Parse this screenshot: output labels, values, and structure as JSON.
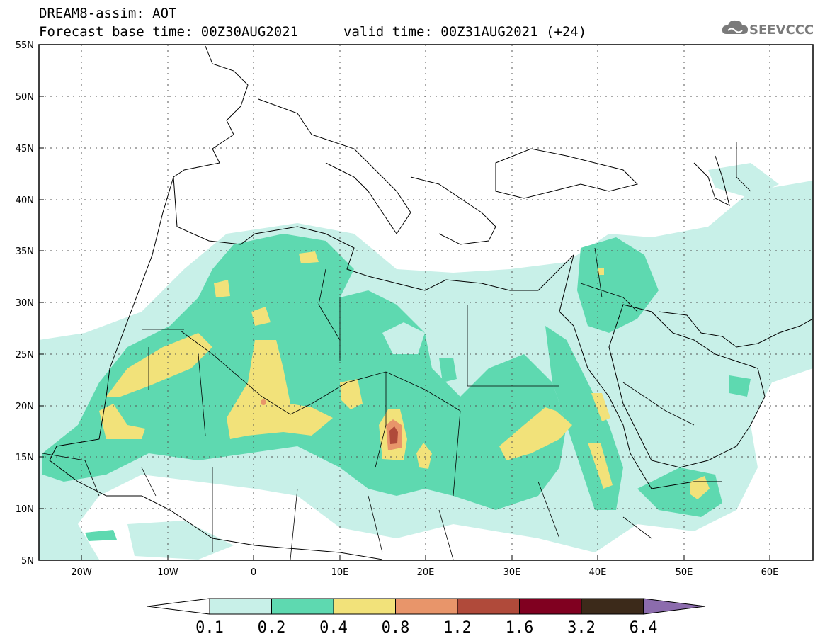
{
  "header": {
    "title": "DREAM8-assim: AOT",
    "base_time": "Forecast base time: 00Z30AUG2021",
    "valid_time": "valid time: 00Z31AUG2021 (+24)"
  },
  "logo": {
    "text": "SEEVCCC",
    "icon": "cloud-icon"
  },
  "map": {
    "lon_range": [
      -25,
      65
    ],
    "lat_range": [
      5,
      55
    ],
    "lat_ticks": [
      "55N",
      "50N",
      "45N",
      "40N",
      "35N",
      "30N",
      "25N",
      "20N",
      "15N",
      "10N",
      "5N"
    ],
    "lon_ticks": [
      "20W",
      "10W",
      "0",
      "10E",
      "20E",
      "30E",
      "40E",
      "50E",
      "60E"
    ]
  },
  "colorbar": {
    "labels": [
      "0.1",
      "0.2",
      "0.4",
      "0.8",
      "1.2",
      "1.6",
      "3.2",
      "6.4"
    ],
    "colors": [
      "#ffffff",
      "#c8f0e8",
      "#5ed9b0",
      "#f2e27a",
      "#e8956a",
      "#b04a3a",
      "#800020",
      "#3c2a1a",
      "#8c6cad"
    ]
  }
}
